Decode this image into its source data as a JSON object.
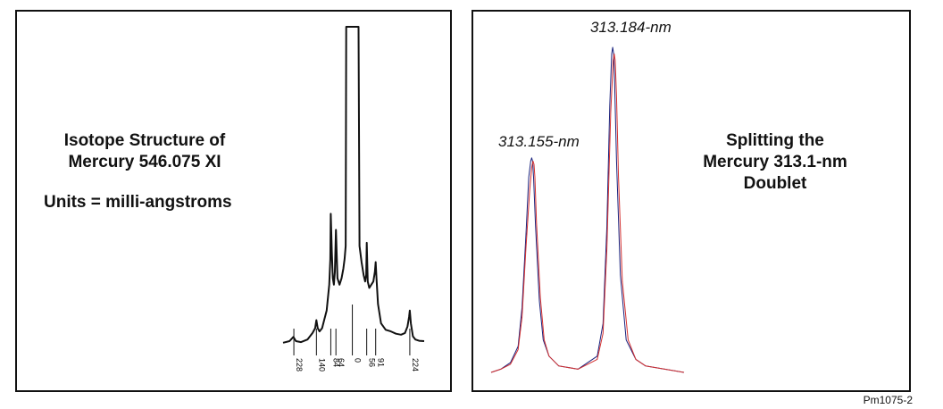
{
  "figure_id": "Pm1075-2",
  "chart_data": [
    {
      "type": "line",
      "title_lines": [
        "Isotope Structure of",
        "Mercury 546.075 XI"
      ],
      "units_label": "Units = milli-angstroms",
      "grid": false,
      "x_tick_labels": [
        "228",
        "140",
        "84",
        "64",
        "0",
        "56",
        "91",
        "224"
      ],
      "x_tick_values": [
        -228,
        -140,
        -84,
        -64,
        0,
        56,
        91,
        224
      ],
      "xlim": [
        -270,
        280
      ],
      "ylim": [
        0,
        1.0
      ],
      "series": [
        {
          "x": [
            -270,
            -245,
            -230,
            -220,
            -200,
            -175,
            -155,
            -145,
            -140,
            -135,
            -128,
            -118,
            -110,
            -100,
            -90,
            -86,
            -84,
            -80,
            -76,
            -72,
            -68,
            -64,
            -58,
            -50,
            -42,
            -35,
            -30,
            -26,
            -24,
            -20,
            0,
            20,
            24,
            28,
            36,
            44,
            50,
            54,
            56,
            60,
            66,
            74,
            82,
            88,
            91,
            94,
            100,
            112,
            130,
            150,
            170,
            190,
            205,
            215,
            221,
            224,
            228,
            236,
            246,
            260,
            280
          ],
          "y": [
            0.02,
            0.025,
            0.038,
            0.025,
            0.022,
            0.03,
            0.05,
            0.065,
            0.09,
            0.065,
            0.055,
            0.065,
            0.09,
            0.12,
            0.2,
            0.28,
            0.42,
            0.3,
            0.22,
            0.2,
            0.24,
            0.37,
            0.22,
            0.2,
            0.22,
            0.25,
            0.28,
            0.32,
            1.0,
            1.0,
            1.0,
            1.0,
            1.0,
            0.32,
            0.27,
            0.23,
            0.21,
            0.23,
            0.33,
            0.21,
            0.19,
            0.2,
            0.21,
            0.24,
            0.27,
            0.22,
            0.14,
            0.08,
            0.06,
            0.055,
            0.048,
            0.045,
            0.05,
            0.07,
            0.1,
            0.12,
            0.08,
            0.04,
            0.03,
            0.026,
            0.025
          ]
        }
      ]
    },
    {
      "type": "line",
      "title_lines": [
        "Splitting the",
        "Mercury 313.1-nm",
        "Doublet"
      ],
      "grid": false,
      "xlim": [
        0,
        100
      ],
      "ylim": [
        0,
        1.0
      ],
      "annotations": [
        "313.155-nm",
        "313.184-nm"
      ],
      "series": [
        {
          "color": "#1a237e",
          "x": [
            0,
            5,
            10,
            14,
            16,
            18,
            19.5,
            20.5,
            21,
            21.5,
            22,
            23,
            25,
            27,
            30,
            35,
            45,
            55,
            58,
            60,
            61.5,
            62.5,
            63,
            63.5,
            64,
            65,
            67,
            70,
            75,
            80,
            90,
            100
          ],
          "y": [
            0.0,
            0.01,
            0.03,
            0.08,
            0.2,
            0.42,
            0.6,
            0.65,
            0.66,
            0.65,
            0.6,
            0.45,
            0.22,
            0.1,
            0.05,
            0.02,
            0.01,
            0.05,
            0.15,
            0.45,
            0.82,
            0.98,
            1.0,
            0.98,
            0.9,
            0.65,
            0.3,
            0.1,
            0.04,
            0.02,
            0.01,
            0.0
          ]
        },
        {
          "color": "#d32f2f",
          "x": [
            0,
            5,
            10,
            14,
            16,
            18,
            20,
            21,
            21.7,
            22.2,
            22.7,
            23.5,
            25.5,
            27.5,
            30,
            35,
            45,
            55,
            58,
            60,
            62,
            63.3,
            63.8,
            64.3,
            65,
            66,
            68,
            71,
            75,
            80,
            90,
            100
          ],
          "y": [
            0.0,
            0.01,
            0.025,
            0.07,
            0.17,
            0.38,
            0.56,
            0.63,
            0.65,
            0.64,
            0.6,
            0.46,
            0.23,
            0.1,
            0.05,
            0.02,
            0.01,
            0.04,
            0.12,
            0.38,
            0.8,
            0.96,
            0.98,
            0.96,
            0.85,
            0.6,
            0.28,
            0.1,
            0.04,
            0.02,
            0.01,
            0.0
          ]
        }
      ]
    }
  ]
}
